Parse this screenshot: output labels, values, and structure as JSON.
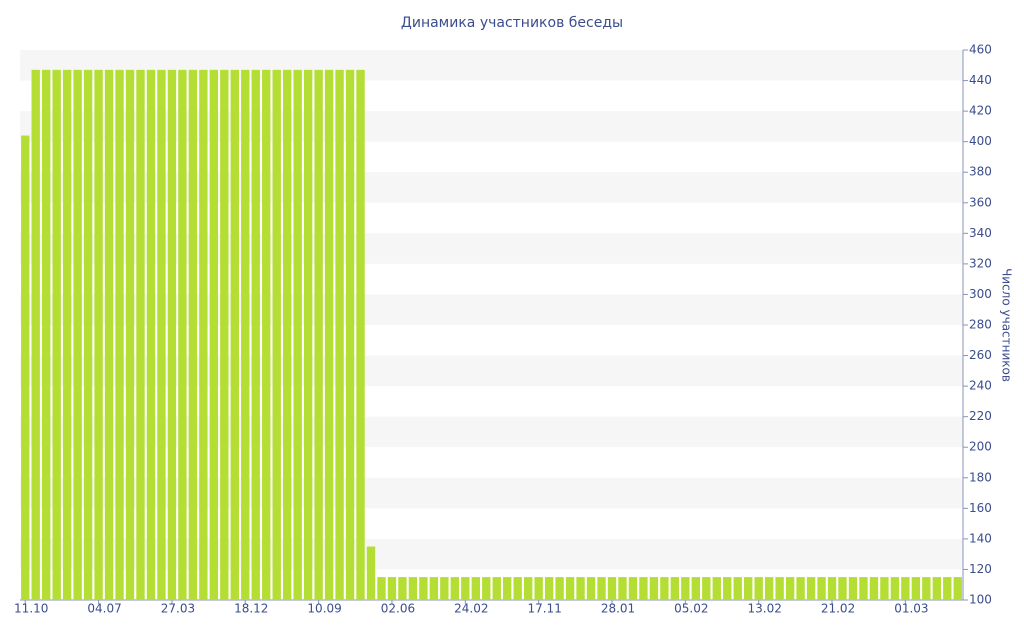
{
  "chart_data": {
    "type": "bar",
    "title": "Динамика участников беседы",
    "y_label": "Число участников",
    "categories": [
      "11.10",
      null,
      null,
      null,
      null,
      null,
      null,
      "04.07",
      null,
      null,
      null,
      null,
      null,
      null,
      "27.03",
      null,
      null,
      null,
      null,
      null,
      null,
      "18.12",
      null,
      null,
      null,
      null,
      null,
      null,
      "10.09",
      null,
      null,
      null,
      null,
      null,
      null,
      "02.06",
      null,
      null,
      null,
      null,
      null,
      null,
      "24.02",
      null,
      null,
      null,
      null,
      null,
      null,
      "17.11",
      null,
      null,
      null,
      null,
      null,
      null,
      "28.01",
      null,
      null,
      null,
      null,
      null,
      null,
      "05.02",
      null,
      null,
      null,
      null,
      null,
      null,
      "13.02",
      null,
      null,
      null,
      null,
      null,
      null,
      "21.02",
      null,
      null,
      null,
      null,
      null,
      null,
      "01.03",
      null,
      null,
      null,
      null,
      null
    ],
    "values": [
      404,
      447,
      447,
      447,
      447,
      447,
      447,
      447,
      447,
      447,
      447,
      447,
      447,
      447,
      447,
      447,
      447,
      447,
      447,
      447,
      447,
      447,
      447,
      447,
      447,
      447,
      447,
      447,
      447,
      447,
      447,
      447,
      447,
      135,
      115,
      115,
      115,
      115,
      115,
      115,
      115,
      115,
      115,
      115,
      115,
      115,
      115,
      115,
      115,
      115,
      115,
      115,
      115,
      115,
      115,
      115,
      115,
      115,
      115,
      115,
      115,
      115,
      115,
      115,
      115,
      115,
      115,
      115,
      115,
      115,
      115,
      115,
      115,
      115,
      115,
      115,
      115,
      115,
      115,
      115,
      115,
      115,
      115,
      115,
      115,
      115,
      115,
      115,
      115,
      115
    ],
    "color": "#b5de35",
    "ylim": [
      100,
      460
    ],
    "yticks": [
      100,
      120,
      140,
      160,
      180,
      200,
      220,
      240,
      260,
      280,
      300,
      320,
      340,
      360,
      380,
      400,
      420,
      440,
      460
    ],
    "grid": true,
    "y_axis_side": "right"
  }
}
